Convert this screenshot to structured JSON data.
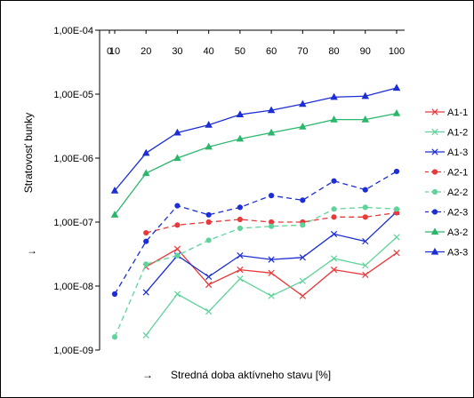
{
  "chart_data": {
    "type": "line",
    "x": [
      10,
      20,
      30,
      40,
      50,
      60,
      70,
      80,
      90,
      100
    ],
    "x_tick_labels": [
      "0",
      "10",
      "20",
      "30",
      "40",
      "50",
      "60",
      "70",
      "80",
      "90",
      "100"
    ],
    "y_scale": "log",
    "y_reversed": true,
    "ylim": [
      1e-09,
      0.0001
    ],
    "y_tick_labels": [
      "1,00E-04",
      "1,00E-05",
      "1,00E-06",
      "1,00E-07",
      "1,00E-08",
      "1,00E-09"
    ],
    "xlabel": "Stredná doba aktívneho stavu [%]",
    "xlabel_arrow": "→",
    "ylabel": "Stratovosť bunky",
    "ylabel_arrow": "→",
    "grid": false,
    "legend_position": "right",
    "series": [
      {
        "name": "A1-1",
        "color": "#e8393b",
        "marker": "x",
        "dash": "solid",
        "values": [
          null,
          2e-08,
          3.8e-08,
          1.05e-08,
          1.8e-08,
          1.6e-08,
          7e-09,
          1.8e-08,
          1.5e-08,
          3.3e-08
        ]
      },
      {
        "name": "A1-2",
        "color": "#5fd39a",
        "marker": "x",
        "dash": "solid",
        "values": [
          null,
          1.7e-09,
          7.5e-09,
          4e-09,
          1.3e-08,
          7e-09,
          1.2e-08,
          2.7e-08,
          2.1e-08,
          5.8e-08
        ]
      },
      {
        "name": "A1-3",
        "color": "#1c2ed4",
        "marker": "x",
        "dash": "solid",
        "values": [
          null,
          8e-09,
          3e-08,
          1.4e-08,
          3e-08,
          2.6e-08,
          2.8e-08,
          6.5e-08,
          5e-08,
          1.45e-07
        ]
      },
      {
        "name": "A2-1",
        "color": "#e8393b",
        "marker": "o",
        "dash": "dash",
        "values": [
          null,
          6.8e-08,
          9e-08,
          1e-07,
          1.1e-07,
          1e-07,
          1e-07,
          1.2e-07,
          1.2e-07,
          1.4e-07
        ]
      },
      {
        "name": "A2-2",
        "color": "#5fd39a",
        "marker": "o",
        "dash": "dash",
        "values": [
          1.6e-09,
          2.2e-08,
          3e-08,
          5.2e-08,
          8e-08,
          8.6e-08,
          9e-08,
          1.6e-07,
          1.7e-07,
          1.6e-07
        ]
      },
      {
        "name": "A2-3",
        "color": "#1c2ed4",
        "marker": "o",
        "dash": "dash",
        "values": [
          7.5e-09,
          5e-08,
          1.8e-07,
          1.3e-07,
          1.7e-07,
          2.6e-07,
          2.2e-07,
          4.4e-07,
          3.2e-07,
          6.2e-07
        ]
      },
      {
        "name": "A3-2",
        "color": "#2ab66b",
        "marker": "^",
        "dash": "solid",
        "values": [
          1.3e-07,
          5.8e-07,
          1e-06,
          1.5e-06,
          2e-06,
          2.5e-06,
          3.1e-06,
          4e-06,
          4e-06,
          5e-06
        ]
      },
      {
        "name": "A3-3",
        "color": "#1c2ed4",
        "marker": "^",
        "dash": "solid",
        "values": [
          3.1e-07,
          1.2e-06,
          2.5e-06,
          3.3e-06,
          4.8e-06,
          5.6e-06,
          7e-06,
          9e-06,
          9.3e-06,
          1.25e-05
        ]
      }
    ]
  }
}
